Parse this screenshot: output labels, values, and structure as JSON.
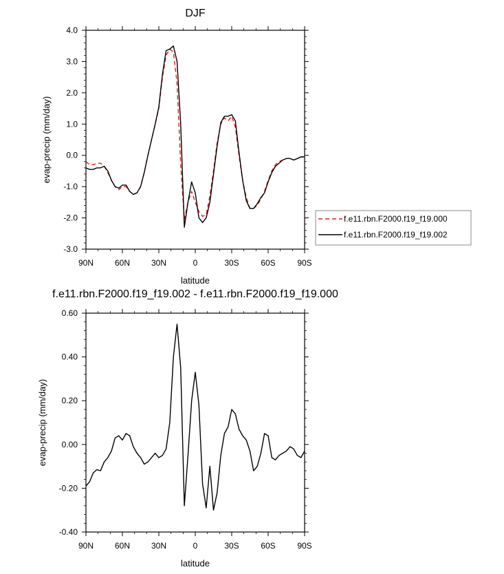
{
  "chart_data": [
    {
      "type": "line",
      "title": "DJF",
      "xlabel": "latitude",
      "ylabel": "evap-precip (mm/day)",
      "xlim": [
        -90,
        90
      ],
      "ylim": [
        -3.0,
        4.0
      ],
      "x_ticks": [
        -90,
        -60,
        -30,
        0,
        30,
        60,
        90
      ],
      "x_tick_labels": [
        "90N",
        "60N",
        "30N",
        "0",
        "30S",
        "60S",
        "90S"
      ],
      "y_ticks": [
        -3.0,
        -2.0,
        -1.0,
        0.0,
        1.0,
        2.0,
        3.0,
        4.0
      ],
      "y_tick_labels": [
        "-3.0",
        "-2.0",
        "-1.0",
        "0.0",
        "1.0",
        "2.0",
        "3.0",
        "4.0"
      ],
      "grid": false,
      "legend_position": "right",
      "series": [
        {
          "name": "f.e11.rbn.F2000.f19_f19.000",
          "color": "#e41a1c",
          "dash": "dashed",
          "x": [
            -90,
            -87,
            -84,
            -81,
            -78,
            -75,
            -72,
            -69,
            -66,
            -63,
            -60,
            -57,
            -54,
            -51,
            -48,
            -45,
            -42,
            -39,
            -36,
            -33,
            -30,
            -27,
            -24,
            -21,
            -18,
            -15,
            -12,
            -9,
            -6,
            -3,
            0,
            3,
            6,
            9,
            12,
            15,
            18,
            21,
            24,
            27,
            30,
            33,
            36,
            39,
            42,
            45,
            48,
            51,
            54,
            57,
            60,
            63,
            66,
            69,
            72,
            75,
            78,
            81,
            84,
            87,
            90
          ],
          "y": [
            -0.2,
            -0.3,
            -0.3,
            -0.25,
            -0.25,
            -0.35,
            -0.55,
            -0.8,
            -1.0,
            -1.1,
            -1.0,
            -1.0,
            -1.15,
            -1.25,
            -1.2,
            -1.0,
            -0.55,
            0.0,
            0.5,
            1.0,
            1.5,
            2.5,
            3.2,
            3.4,
            3.3,
            2.3,
            -0.3,
            -2.05,
            -1.5,
            -1.15,
            -1.5,
            -1.8,
            -1.95,
            -1.9,
            -1.3,
            -0.5,
            0.4,
            1.0,
            1.2,
            1.1,
            1.25,
            0.9,
            0.0,
            -0.8,
            -1.35,
            -1.7,
            -1.7,
            -1.6,
            -1.4,
            -1.15,
            -0.8,
            -0.5,
            -0.3,
            -0.2,
            -0.15,
            -0.1,
            -0.1,
            -0.15,
            -0.1,
            -0.05,
            -0.05
          ]
        },
        {
          "name": "f.e11.rbn.F2000.f19_f19.002",
          "color": "#000000",
          "dash": "solid",
          "x": [
            -90,
            -87,
            -84,
            -81,
            -78,
            -75,
            -72,
            -69,
            -66,
            -63,
            -60,
            -57,
            -54,
            -51,
            -48,
            -45,
            -42,
            -39,
            -36,
            -33,
            -30,
            -27,
            -24,
            -21,
            -18,
            -15,
            -12,
            -9,
            -6,
            -3,
            0,
            3,
            6,
            9,
            12,
            15,
            18,
            21,
            24,
            27,
            30,
            33,
            36,
            39,
            42,
            45,
            48,
            51,
            54,
            57,
            60,
            63,
            66,
            69,
            72,
            75,
            78,
            81,
            84,
            87,
            90
          ],
          "y": [
            -0.4,
            -0.45,
            -0.45,
            -0.4,
            -0.4,
            -0.35,
            -0.5,
            -0.8,
            -1.0,
            -1.05,
            -0.95,
            -0.95,
            -1.15,
            -1.25,
            -1.2,
            -1.0,
            -0.55,
            0.0,
            0.5,
            1.0,
            1.55,
            2.6,
            3.35,
            3.4,
            3.5,
            3.0,
            1.0,
            -2.3,
            -1.5,
            -0.85,
            -1.2,
            -2.0,
            -2.15,
            -2.0,
            -1.5,
            -0.6,
            0.3,
            1.05,
            1.25,
            1.25,
            1.3,
            1.1,
            0.1,
            -0.8,
            -1.45,
            -1.7,
            -1.7,
            -1.55,
            -1.35,
            -1.2,
            -0.85,
            -0.55,
            -0.35,
            -0.25,
            -0.15,
            -0.1,
            -0.1,
            -0.15,
            -0.1,
            -0.05,
            -0.05
          ]
        }
      ]
    },
    {
      "type": "line",
      "title": "f.e11.rbn.F2000.f19_f19.002 - f.e11.rbn.F2000.f19_f19.000",
      "xlabel": "latitude",
      "ylabel": "evap-precip (mm/day)",
      "xlim": [
        -90,
        90
      ],
      "ylim": [
        -0.4,
        0.6
      ],
      "x_ticks": [
        -90,
        -60,
        -30,
        0,
        30,
        60,
        90
      ],
      "x_tick_labels": [
        "90N",
        "60N",
        "30N",
        "0",
        "30S",
        "60S",
        "90S"
      ],
      "y_ticks": [
        -0.4,
        -0.2,
        0.0,
        0.2,
        0.4,
        0.6
      ],
      "y_tick_labels": [
        "-0.40",
        "-0.20",
        "0.00",
        "0.20",
        "0.40",
        "0.60"
      ],
      "grid": false,
      "series": [
        {
          "color": "#000000",
          "dash": "solid",
          "x": [
            -90,
            -87,
            -84,
            -81,
            -78,
            -75,
            -72,
            -69,
            -66,
            -63,
            -60,
            -57,
            -54,
            -51,
            -48,
            -45,
            -42,
            -39,
            -36,
            -33,
            -30,
            -27,
            -24,
            -21,
            -18,
            -15,
            -12,
            -9,
            -6,
            -3,
            0,
            3,
            6,
            9,
            12,
            15,
            18,
            21,
            24,
            27,
            30,
            33,
            36,
            39,
            42,
            45,
            48,
            51,
            54,
            57,
            60,
            63,
            66,
            69,
            72,
            75,
            78,
            81,
            84,
            87,
            90
          ],
          "y": [
            -0.19,
            -0.17,
            -0.13,
            -0.115,
            -0.12,
            -0.08,
            -0.06,
            -0.03,
            0.03,
            0.04,
            0.02,
            0.05,
            0.04,
            -0.01,
            -0.04,
            -0.06,
            -0.09,
            -0.08,
            -0.06,
            -0.04,
            -0.06,
            -0.05,
            -0.02,
            0.1,
            0.4,
            0.55,
            0.35,
            -0.28,
            -0.05,
            0.2,
            0.33,
            0.18,
            -0.18,
            -0.29,
            -0.1,
            -0.3,
            -0.22,
            -0.05,
            0.05,
            0.08,
            0.16,
            0.14,
            0.07,
            0.04,
            0.02,
            -0.03,
            -0.12,
            -0.1,
            -0.04,
            0.05,
            0.04,
            -0.06,
            -0.07,
            -0.05,
            -0.04,
            -0.03,
            -0.01,
            -0.02,
            -0.05,
            -0.06,
            -0.03
          ]
        }
      ]
    }
  ]
}
